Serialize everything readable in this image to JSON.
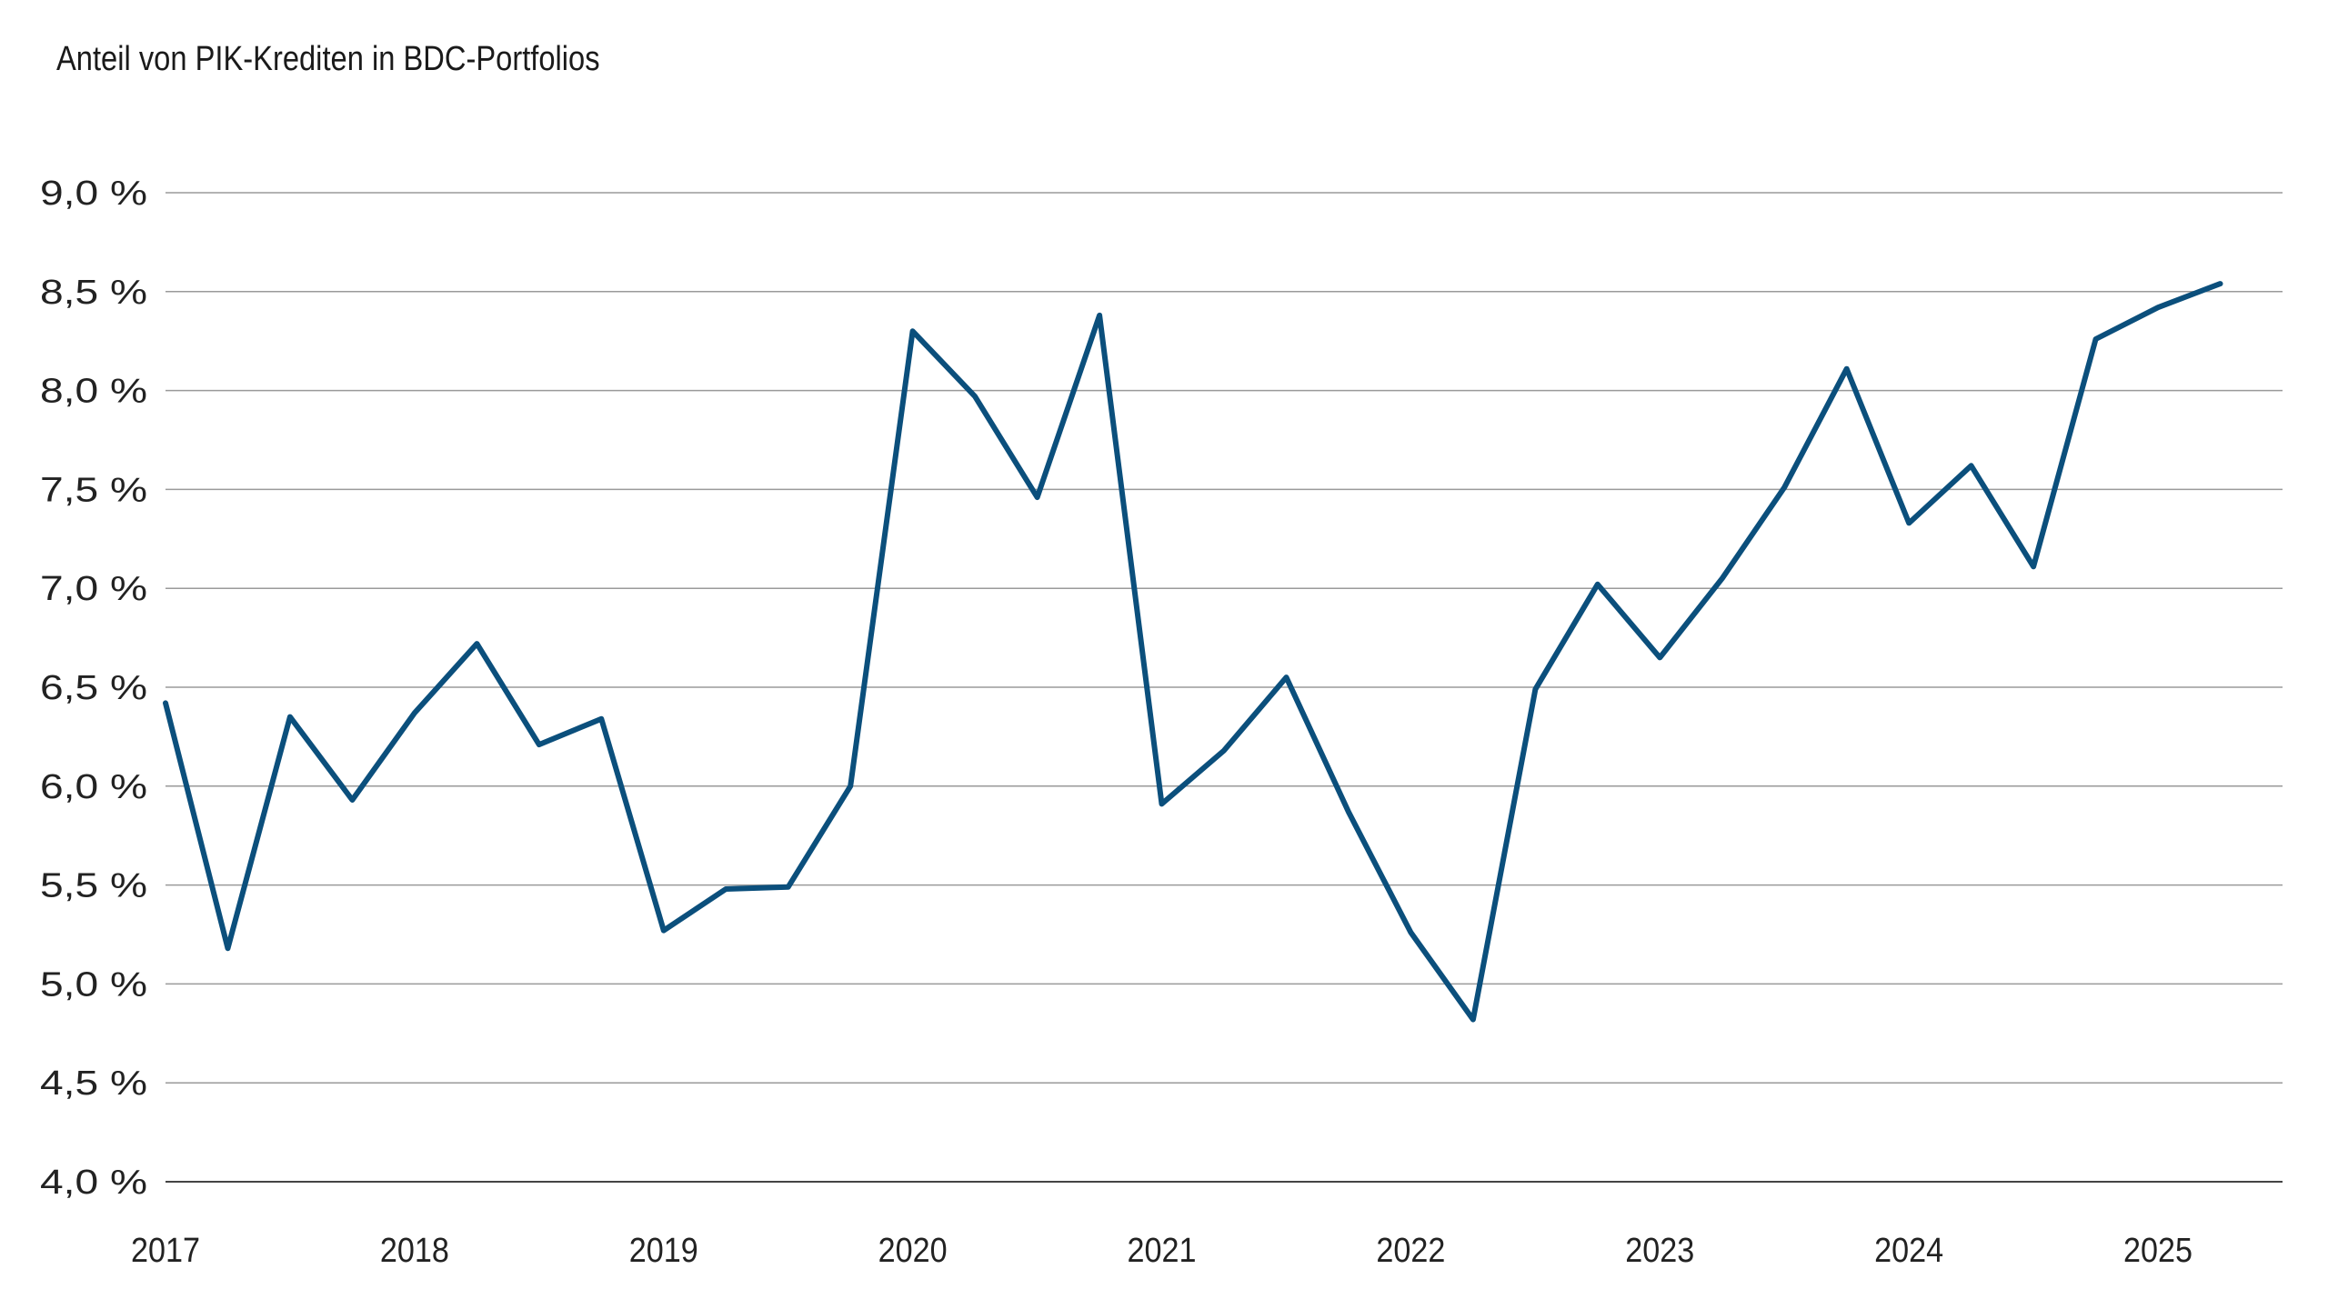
{
  "chart_data": {
    "type": "line",
    "title": "Anteil von PIK-Krediten in BDC-Portfolios",
    "xlabel": "",
    "ylabel": "",
    "x_tick_labels": [
      "2017",
      "2018",
      "2019",
      "2020",
      "2021",
      "2022",
      "2023",
      "2024",
      "2025"
    ],
    "y_tick_labels": [
      "4,0 %",
      "4,5 %",
      "5,0 %",
      "5,5 %",
      "6,0 %",
      "6,5 %",
      "7,0 %",
      "7,5 %",
      "8,0 %",
      "8,5 %",
      "9,0 %"
    ],
    "ylim": [
      4.0,
      9.0
    ],
    "xlim": [
      2017.0,
      2025.5
    ],
    "grid": "horizontal",
    "legend": "none",
    "series": [
      {
        "color": "#0b4f7c",
        "x": [
          2017.0,
          2017.25,
          2017.5,
          2017.75,
          2018.0,
          2018.25,
          2018.5,
          2018.75,
          2019.0,
          2019.25,
          2019.5,
          2019.75,
          2020.0,
          2020.25,
          2020.5,
          2020.75,
          2021.0,
          2021.25,
          2021.5,
          2021.75,
          2022.0,
          2022.25,
          2022.5,
          2022.75,
          2023.0,
          2023.25,
          2023.5,
          2023.75,
          2024.0,
          2024.25,
          2024.5,
          2024.75,
          2025.0,
          2025.25
        ],
        "values": [
          6.42,
          5.18,
          6.35,
          5.93,
          6.37,
          6.72,
          6.21,
          6.34,
          5.27,
          5.48,
          5.49,
          6.0,
          8.3,
          7.97,
          7.46,
          8.38,
          5.91,
          6.18,
          6.55,
          5.87,
          5.26,
          4.82,
          6.49,
          7.02,
          6.65,
          7.05,
          7.51,
          8.11,
          7.33,
          7.62,
          7.11,
          8.26,
          8.42,
          8.54
        ]
      }
    ]
  }
}
